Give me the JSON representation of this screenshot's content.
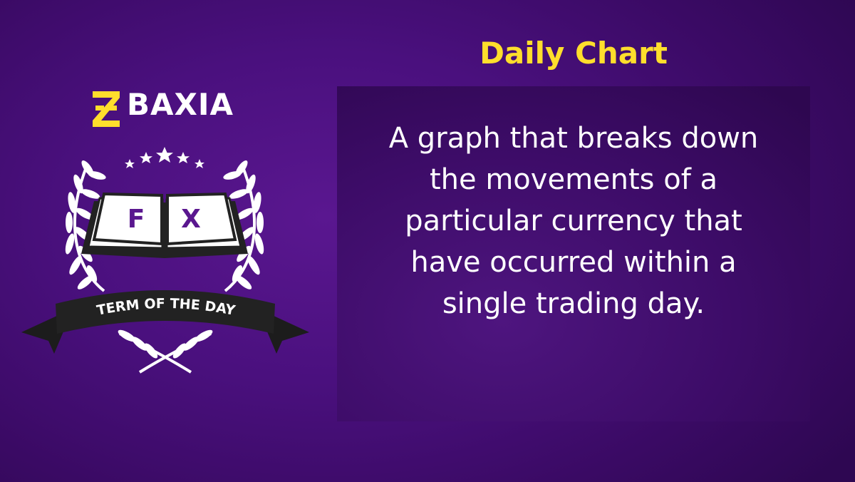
{
  "brand": {
    "name": "BAXIA",
    "logo_icon": "baxia-z-logo-icon",
    "accent_color": "#ffde2c"
  },
  "badge": {
    "book_letters": [
      "F",
      "X"
    ],
    "ribbon_text": "TERM OF THE DAY",
    "star_count": 5
  },
  "term": {
    "title": "Daily Chart",
    "definition": "A graph that breaks down the movements of a particular currency that have occurred within a single trading day."
  },
  "colors": {
    "background": "#4a107e",
    "card": "#3d0c68",
    "letters": "#5a178f",
    "ribbon": "#222222"
  }
}
